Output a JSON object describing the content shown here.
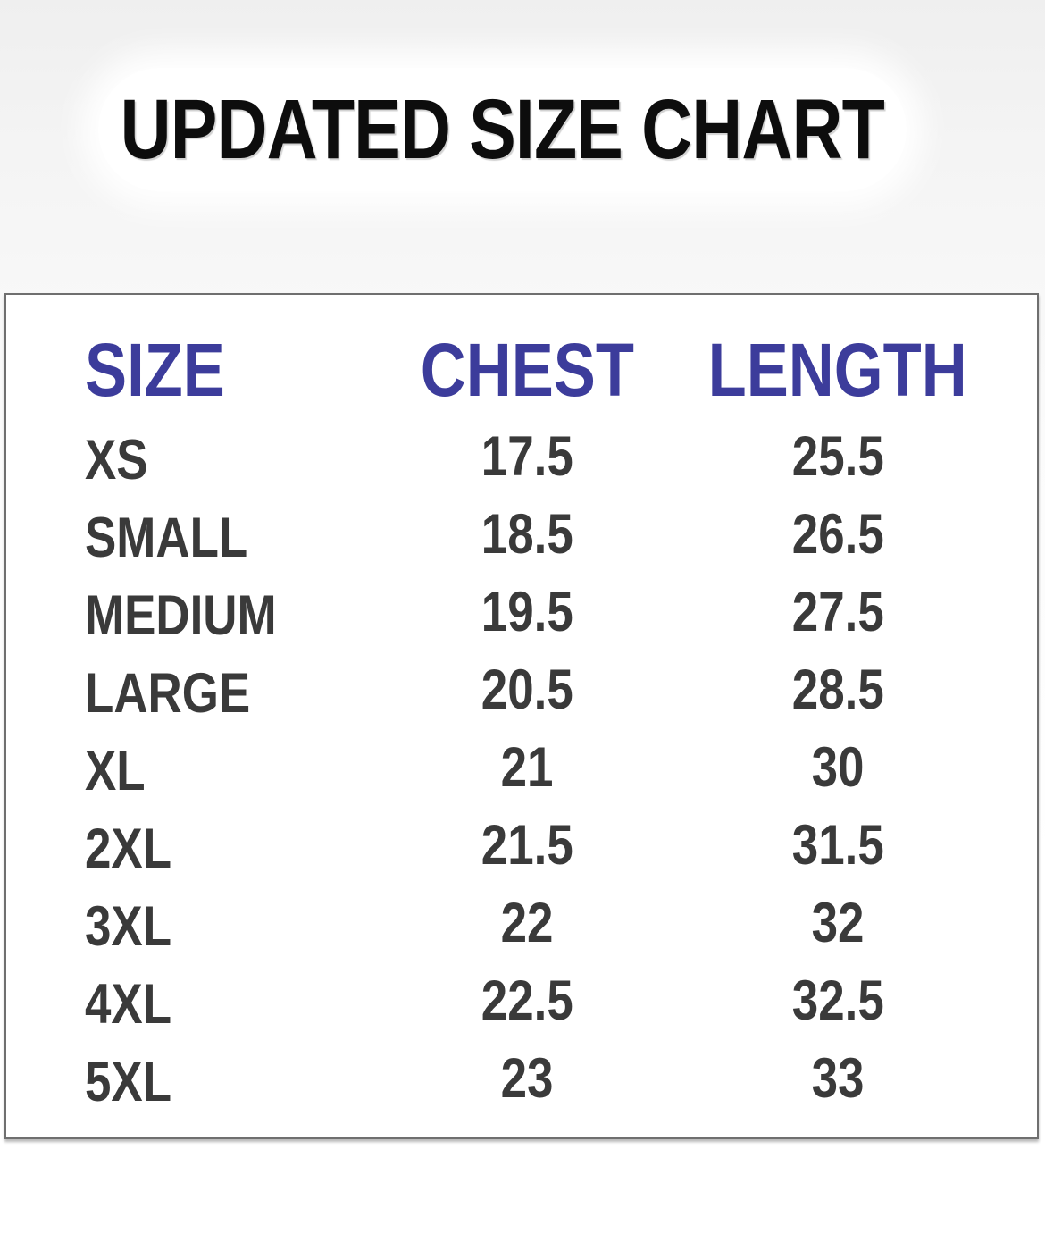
{
  "title": "UPDATED SIZE CHART",
  "chart_data": {
    "type": "table",
    "title": "UPDATED SIZE CHART",
    "columns": [
      "SIZE",
      "CHEST",
      "LENGTH"
    ],
    "rows": [
      [
        "XS",
        17.5,
        25.5
      ],
      [
        "SMALL",
        18.5,
        26.5
      ],
      [
        "MEDIUM",
        19.5,
        27.5
      ],
      [
        "LARGE",
        20.5,
        28.5
      ],
      [
        "XL",
        21,
        30
      ],
      [
        "2XL",
        21.5,
        31.5
      ],
      [
        "3XL",
        22,
        32
      ],
      [
        "4XL",
        22.5,
        32.5
      ],
      [
        "5XL",
        23,
        33
      ]
    ]
  },
  "colors": {
    "header_text": "#3c3c9b",
    "body_text": "#3a3a3a",
    "title_text": "#0d0d0d",
    "card_border": "#6f6f6f"
  }
}
